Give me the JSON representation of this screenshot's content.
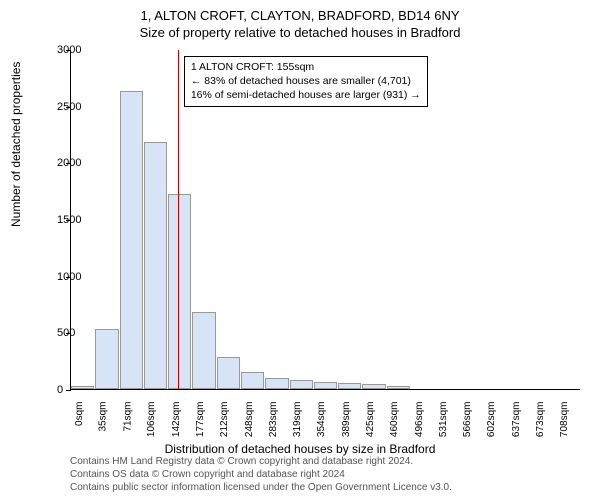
{
  "title": "1, ALTON CROFT, CLAYTON, BRADFORD, BD14 6NY",
  "subtitle": "Size of property relative to detached houses in Bradford",
  "chart": {
    "type": "histogram",
    "ylabel": "Number of detached properties",
    "xlabel": "Distribution of detached houses by size in Bradford",
    "ylim": [
      0,
      3000
    ],
    "ytick_step": 500,
    "bar_color": "#d6e4f5",
    "bar_border": "#999999",
    "background_color": "#ffffff",
    "marker_color": "#cc0000",
    "marker_x_index": 4.4,
    "xtick_labels": [
      "0sqm",
      "35sqm",
      "71sqm",
      "106sqm",
      "142sqm",
      "177sqm",
      "212sqm",
      "248sqm",
      "283sqm",
      "319sqm",
      "354sqm",
      "389sqm",
      "425sqm",
      "460sqm",
      "496sqm",
      "531sqm",
      "566sqm",
      "602sqm",
      "637sqm",
      "673sqm",
      "708sqm"
    ],
    "values": [
      30,
      530,
      2630,
      2180,
      1720,
      680,
      280,
      150,
      100,
      80,
      60,
      50,
      40,
      30,
      0,
      0,
      0,
      0,
      0,
      0,
      0
    ],
    "bar_count": 21
  },
  "info_box": {
    "line1": "1 ALTON CROFT: 155sqm",
    "line2": "← 83% of detached houses are smaller (4,701)",
    "line3": "16% of semi-detached houses are larger (931) →"
  },
  "footer": {
    "line1": "Contains HM Land Registry data © Crown copyright and database right 2024.",
    "line2": "Contains OS data © Crown copyright and database right 2024",
    "line3": "Contains public sector information licensed under the Open Government Licence v3.0."
  }
}
